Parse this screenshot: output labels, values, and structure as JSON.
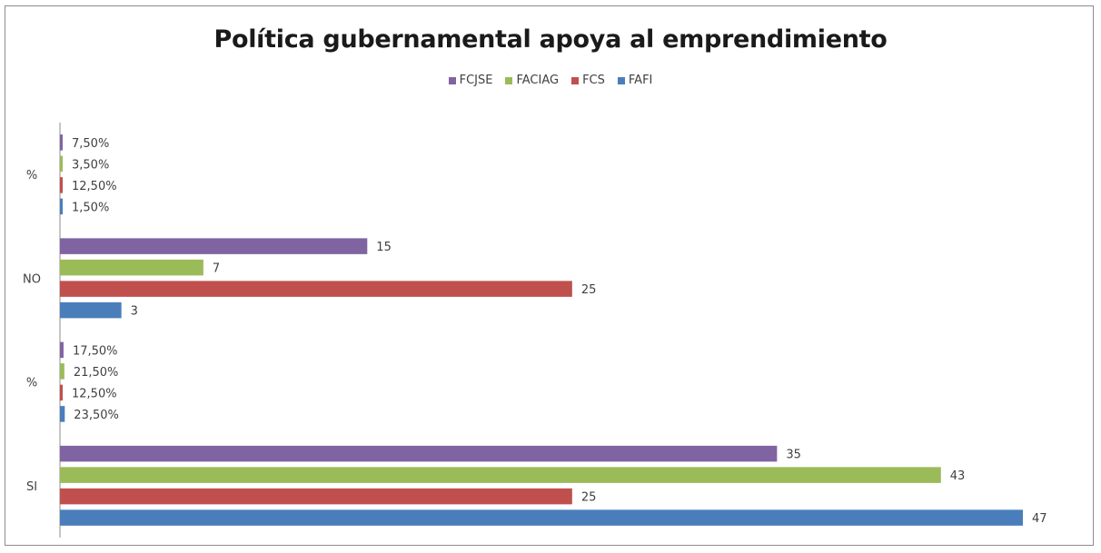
{
  "chart_data": {
    "type": "bar",
    "orientation": "horizontal",
    "title": "Política gubernamental apoya al emprendimiento",
    "categories": [
      "SI",
      "%",
      "NO",
      "%"
    ],
    "series": [
      {
        "name": "FAFI",
        "color": "#4a7ebb",
        "values": [
          47,
          0.235,
          3,
          0.015
        ],
        "labels": [
          "47",
          "23,50%",
          "3",
          "1,50%"
        ]
      },
      {
        "name": "FCS",
        "color": "#c0504d",
        "values": [
          25,
          0.125,
          25,
          0.125
        ],
        "labels": [
          "25",
          "12,50%",
          "25",
          "12,50%"
        ]
      },
      {
        "name": "FACIAG",
        "color": "#9bbb59",
        "values": [
          43,
          0.215,
          7,
          0.035
        ],
        "labels": [
          "43",
          "21,50%",
          "7",
          "3,50%"
        ]
      },
      {
        "name": "FCJSE",
        "color": "#8064a2",
        "values": [
          35,
          0.175,
          15,
          0.075
        ],
        "labels": [
          "35",
          "17,50%",
          "15",
          "7,50%"
        ]
      }
    ],
    "legend_order": [
      "FCJSE",
      "FACIAG",
      "FCS",
      "FAFI"
    ],
    "legend_position": "top",
    "grid": false,
    "xlim": [
      0,
      50
    ]
  }
}
